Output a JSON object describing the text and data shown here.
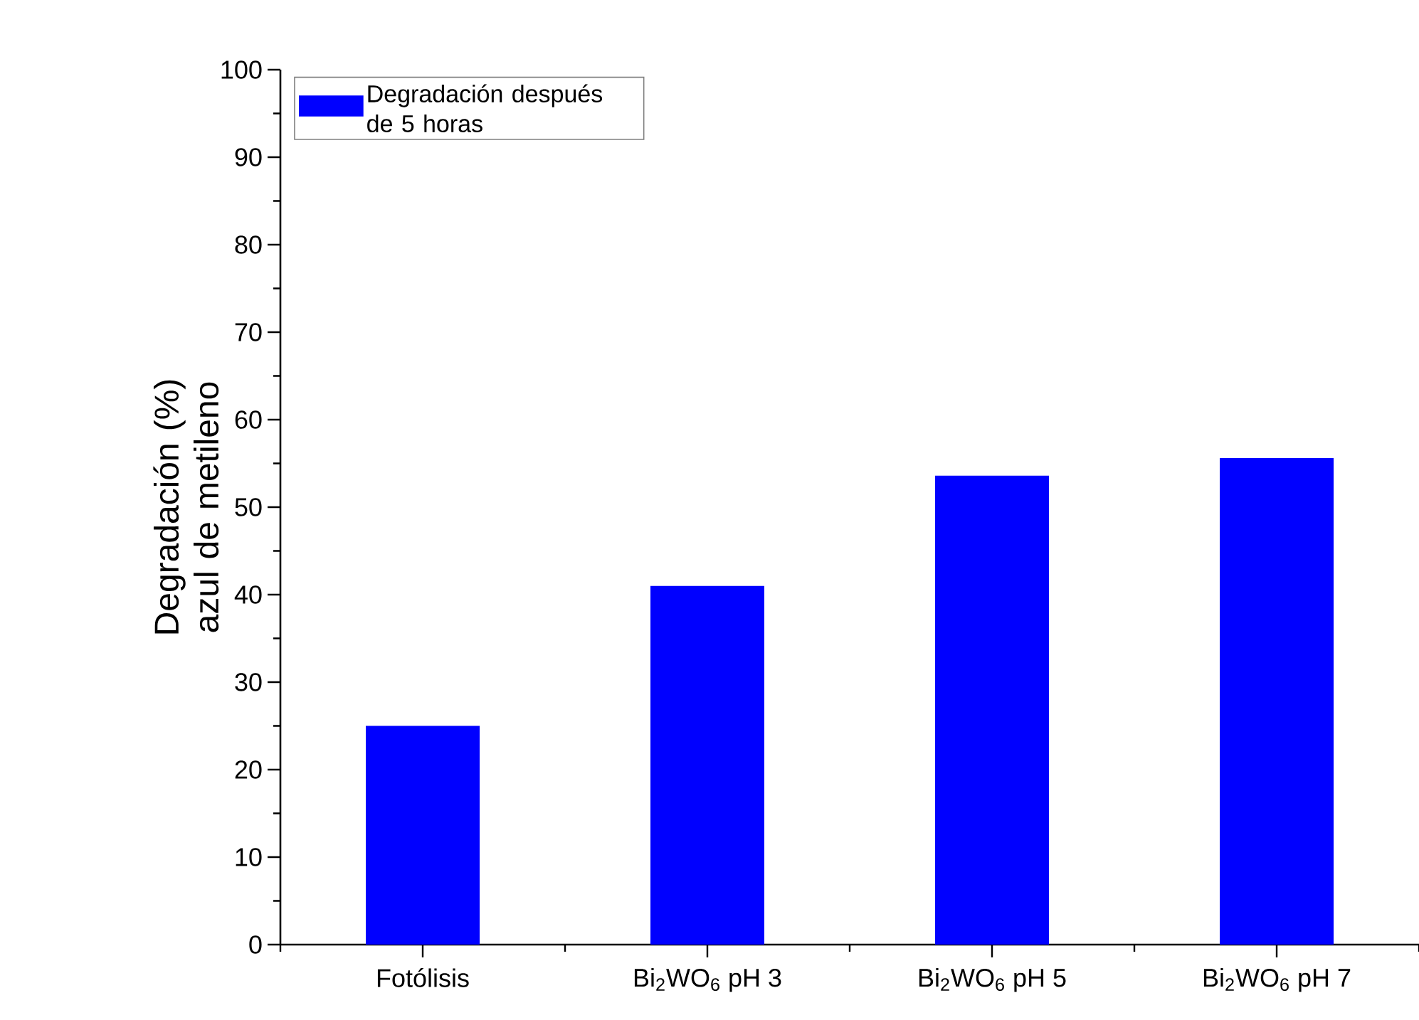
{
  "chart_data": {
    "type": "bar",
    "ylabel": "Degradación (%) azul de metileno",
    "categories": [
      "Fotólisis",
      "Bi$_{2}$WO$_{6}$ pH 3",
      "Bi$_{2}$WO$_{6}$ pH 5",
      "Bi$_{2}$WO$_{6}$ pH 7"
    ],
    "series": [
      {
        "name": "Degradación después de 5 horas",
        "color": "#0000ff",
        "values": [
          25,
          41,
          53.6,
          55.6
        ]
      }
    ],
    "ylim": [
      0,
      100
    ],
    "yticks": [
      0,
      10,
      20,
      30,
      40,
      50,
      60,
      70,
      80,
      90,
      100
    ],
    "grid": false,
    "legend": "top left"
  }
}
